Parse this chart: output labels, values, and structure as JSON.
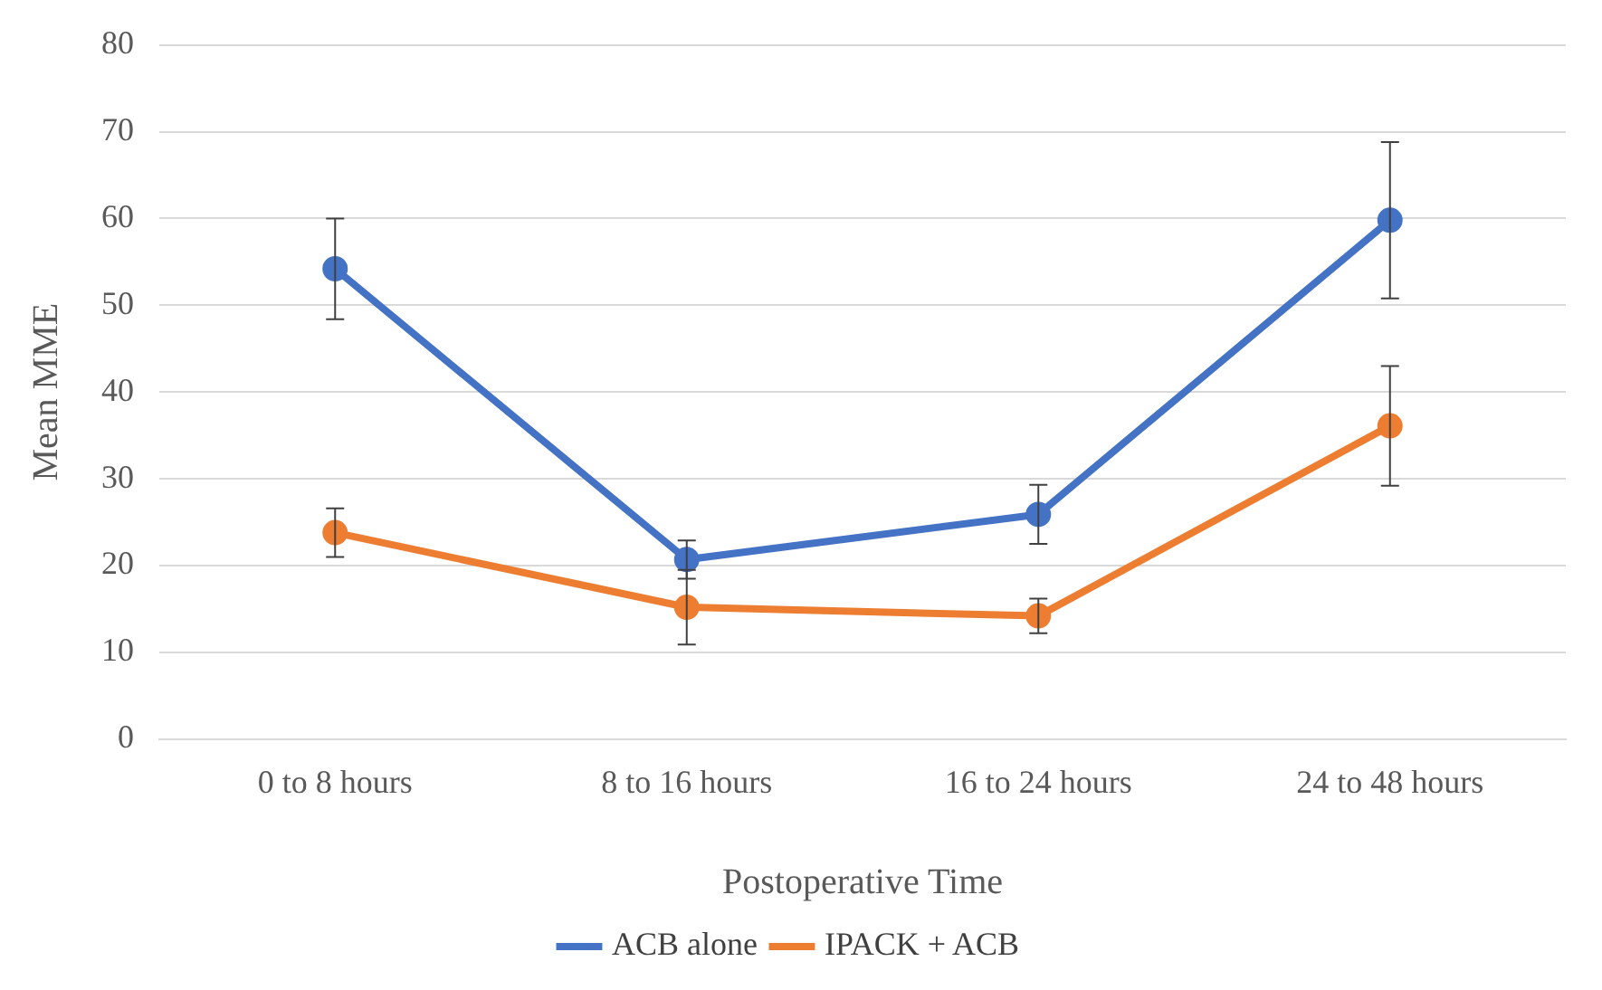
{
  "chart_data": {
    "type": "line",
    "xlabel": "Postoperative Time",
    "ylabel": "Mean MME",
    "categories": [
      "0 to 8 hours",
      "8 to 16 hours",
      "16 to 24 hours",
      "24 to 48 hours"
    ],
    "series": [
      {
        "name": "ACB alone",
        "color": "#4472c4",
        "values": [
          54.2,
          20.7,
          25.9,
          59.8
        ],
        "errors": [
          5.8,
          2.2,
          3.4,
          9
        ]
      },
      {
        "name": "IPACK + ACB",
        "color": "#ed7d31",
        "values": [
          23.8,
          15.2,
          14.2,
          36.1
        ],
        "errors": [
          2.8,
          4.3,
          2,
          6.9
        ]
      }
    ],
    "ylim": [
      0,
      80
    ],
    "yticks": [
      0,
      10,
      20,
      30,
      40,
      50,
      60,
      70,
      80
    ],
    "grid": "y",
    "legend": "bottom",
    "marker": "circle",
    "line_style": "solid"
  }
}
